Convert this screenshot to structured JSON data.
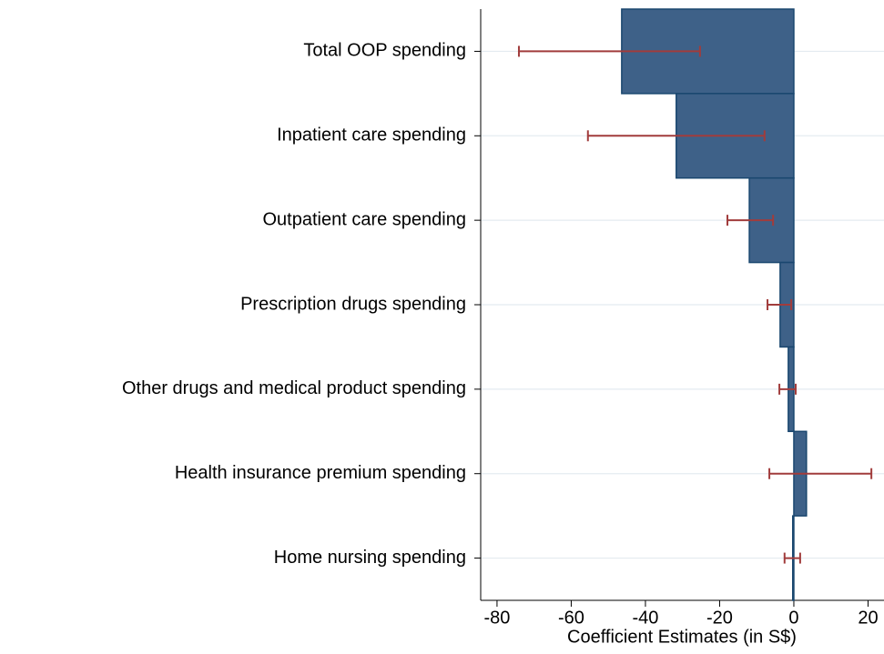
{
  "chart_data": {
    "type": "bar",
    "orientation": "horizontal",
    "categories": [
      "Total OOP spending",
      "Inpatient care spending",
      "Outpatient care spending",
      "Prescription drugs spending",
      "Other drugs and medical product spending",
      "Health insurance premium spending",
      "Home nursing spending"
    ],
    "values": [
      -46.4,
      -31.7,
      -12.0,
      -3.7,
      -1.5,
      3.4,
      -0.3
    ],
    "ci_low": [
      -74.1,
      -55.5,
      -17.9,
      -7.1,
      -3.9,
      -6.6,
      -2.5
    ],
    "ci_high": [
      -25.3,
      -7.9,
      -5.6,
      -0.7,
      0.5,
      20.9,
      1.7
    ],
    "color": "#3e6188",
    "error_color": "#a13c3c",
    "xlabel": "Coefficient Estimates (in S$)",
    "xlim": [
      -84.4,
      24.3
    ],
    "xticks": [
      -80,
      -60,
      -40,
      -20,
      0,
      20
    ],
    "grid": true
  }
}
